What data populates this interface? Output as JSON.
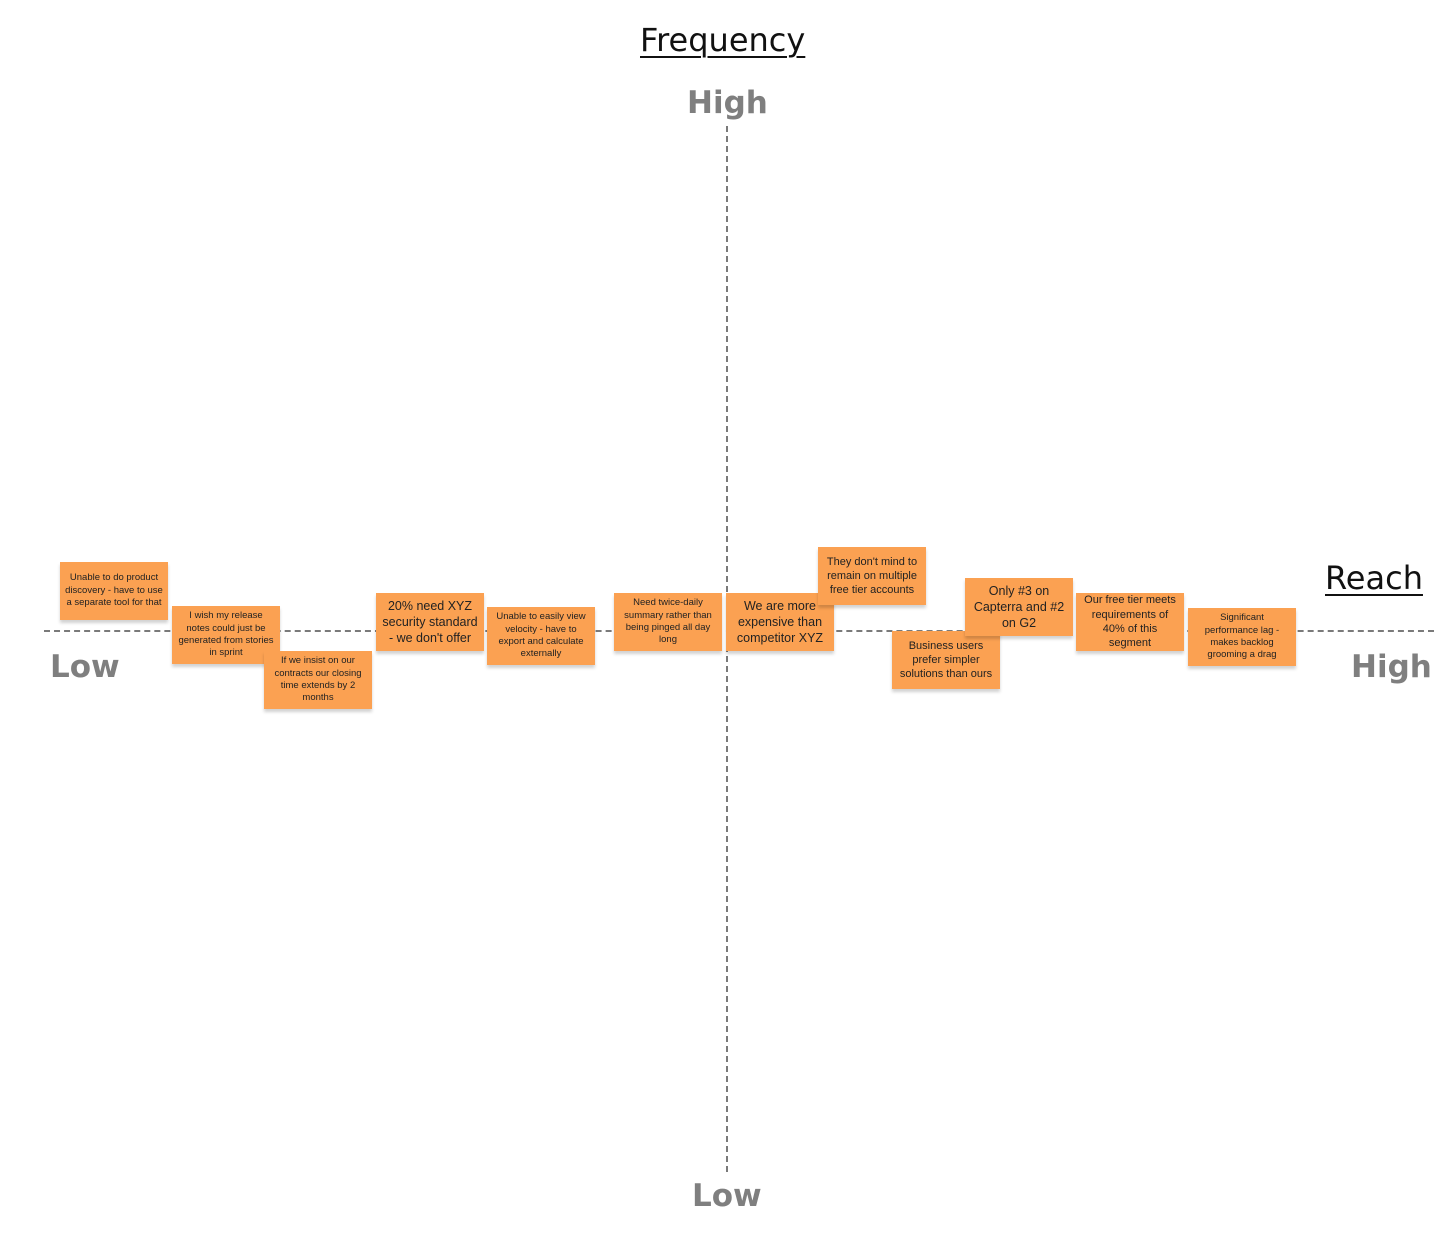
{
  "axes": {
    "vertical": {
      "title": "Frequency",
      "high_label": "High",
      "low_label": "Low"
    },
    "horizontal": {
      "title": "Reach",
      "high_label": "High",
      "low_label": "Low"
    }
  },
  "colors": {
    "sticky_note": "#fba152",
    "axis_line": "#7a7a7a",
    "axis_end_label": "#7f7f7f"
  },
  "notes": [
    {
      "id": "product-discovery",
      "text": "Unable to do product discovery - have to use a separate tool for that"
    },
    {
      "id": "release-notes",
      "text": "I wish my release notes could just be generated from stories in sprint"
    },
    {
      "id": "closing-time",
      "text": "If we insist on our contracts our closing time extends by 2 months"
    },
    {
      "id": "security-standard",
      "text": "20% need XYZ security standard - we don't offer"
    },
    {
      "id": "velocity",
      "text": "Unable to easily view velocity - have to export and calculate externally"
    },
    {
      "id": "twice-daily-summary",
      "text": "Need twice-daily summary rather than being pinged all day long"
    },
    {
      "id": "more-expensive",
      "text": "We are more expensive than competitor XYZ"
    },
    {
      "id": "free-tier-accounts",
      "text": "They don't mind to remain on multiple free tier accounts"
    },
    {
      "id": "simpler-solutions",
      "text": "Business users prefer simpler solutions than ours"
    },
    {
      "id": "capterra-g2",
      "text": "Only #3 on Capterra and #2 on G2"
    },
    {
      "id": "free-tier-requirements",
      "text": "Our free tier meets requirements of 40% of this segment"
    },
    {
      "id": "performance-lag",
      "text": "Significant performance lag - makes backlog grooming a drag"
    }
  ]
}
